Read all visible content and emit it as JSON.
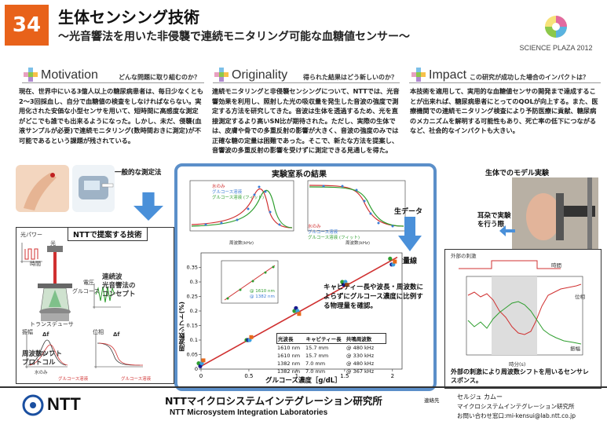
{
  "header": {
    "number": "34",
    "title": "生体センシング技術",
    "subtitle": "〜光音響法を用いた非侵襲で連続モニタリング可能な血糖値センサー〜",
    "event_logo_text": "SCIENCE PLAZA 2012"
  },
  "motivation": {
    "title": "Motivation",
    "question": "どんな問題に取り組むのか？",
    "body": "現在、世界中にいる3億人以上の糖尿病患者は、毎日少なくとも2〜3回採血し、自分で血糖値の検査をしなければならない。実用化された安価な小型センサを用いて、短時間に高感度な測定がどこでも誰でも出来るようになった。しかし、未だ、侵襲(血液サンプルが必要)で連続モニタリング(数時間おきに測定)が不可能であるという課題が残されている。"
  },
  "originality": {
    "title": "Originality",
    "question": "得られた結果はどう新しいのか？",
    "body": "連続モニタリングと非侵襲センシングについて、NTTでは、光音響効果を利用し、照射した光の吸収量を発生した音波の強度で測定する方法を研究してきた。音波は生体を透過するため、光を直接測定するより高いSN比が期待された。ただし、実際の生体では、皮膚や骨での多重反射の影響が大きく、音波の強度のみでは正確な糖の定量は困難であった。そこで、新たな方法を提案し、音響波の多重反射の影響を受けずに測定できる見通しを得た。"
  },
  "impact": {
    "title": "Impact",
    "question": "この研究が成功した場合のインパクトは？",
    "body": "本技術を適用して、実用的な血糖値センサの開発まで達成することが出来れば、糖尿病患者にとってのQOLが向上する。また、医療機関での連続モニタリング検査により予防医療に貢献、糖尿病のメカニズムを解明する可能性もあり、死亡率の低下につながるなど、社会的なインパクトも大きい。"
  },
  "left_panel": {
    "general_method": "一般的な測定法",
    "ntt_tech": "NTTで提案する技術",
    "light_power": "光パワー",
    "light": "光",
    "time": "時間",
    "glucose": "グルコース",
    "transducer": "トランスデューサ",
    "voltage": "電圧",
    "concept": "連続波\n光音響法の\nコンセプト",
    "amplitude": "振幅",
    "phase": "位相",
    "delta_f": "Δf",
    "water": "水のみ",
    "glucose_sol": "グルコース溶液",
    "freq_shift": "周波数シフト\nプロトコル",
    "delta_v": "ΔV↑"
  },
  "center_panel": {
    "title": "実験室系の結果",
    "raw_data": "生データ",
    "line_label": "検量線",
    "cavity_text": "キャビティー長や波長・周波数によらずにグルコース濃度に比例する物理量を確認。",
    "x_label": "グルコース濃度［g/dL］",
    "y_label": "周波数シフト(%)",
    "table_headers": [
      "光波長",
      "キャビティー長",
      "共鳴周波数"
    ],
    "table_rows": [
      [
        "1610 nm",
        "15.7 mm",
        "@ 480 kHz"
      ],
      [
        "1610 nm",
        "15.7 mm",
        "@ 330 kHz"
      ],
      [
        "1382 nm",
        "7.0 mm",
        "@ 480 kHz"
      ],
      [
        "1382 nm",
        "7.0 mm",
        "@ 367 kHz"
      ]
    ],
    "inset_legend": [
      "水のみ",
      "グルコース溶液",
      "グルコース溶液 (フィット)"
    ],
    "inset2_legend": [
      "水のみ",
      "グルコース溶液",
      "グルコース溶液 (フィット)"
    ],
    "inset_xlabel": "周波数(kHz)",
    "small_inset_legend": [
      "@ 1610 nm",
      "@ 1382 nm"
    ]
  },
  "right_panel": {
    "title": "生体でのモデル実験",
    "ear_text": "耳朶で実験\nを行う際",
    "stimulus": "外部の刺激",
    "time": "時間",
    "phase": "位相",
    "amplitude": "振幅",
    "x_label": "時分(s)",
    "caption": "外部の刺激により周波数シフトを用いるセンサレスポンス。"
  },
  "chart_data": [
    {
      "type": "scatter",
      "title": "",
      "xlabel": "グルコース濃度［g/dL］",
      "ylabel": "周波数シフト(%)",
      "xlim": [
        0,
        2.1
      ],
      "ylim": [
        0,
        0.4
      ],
      "x_ticks": [
        0,
        0.5,
        1,
        1.5,
        2
      ],
      "y_ticks": [
        0,
        0.05,
        0.1,
        0.15,
        0.2,
        0.25,
        0.3,
        0.35
      ],
      "series": [
        {
          "name": "1610 nm 15.7 mm @ 480 kHz",
          "color": "#2e9e2e",
          "x": [
            0,
            0.5,
            1,
            1.5,
            2
          ],
          "y": [
            0.02,
            0.1,
            0.2,
            0.3,
            0.38
          ]
        },
        {
          "name": "1610 nm 15.7 mm @ 330 kHz",
          "color": "#1a1a8c",
          "x": [
            0,
            0.5,
            1,
            1.5,
            2
          ],
          "y": [
            0.01,
            0.1,
            0.21,
            0.29,
            0.36
          ]
        },
        {
          "name": "1382 nm 7.0 mm @ 480 kHz",
          "color": "#3aa0e0",
          "x": [
            0,
            0.5,
            1,
            1.5,
            2
          ],
          "y": [
            0.02,
            0.1,
            0.2,
            0.3,
            0.36
          ]
        },
        {
          "name": "1382 nm 7.0 mm @ 367 kHz",
          "color": "#e86a1a",
          "x": [
            0,
            0.5,
            1,
            1.5,
            2
          ],
          "y": [
            0.03,
            0.11,
            0.19,
            0.29,
            0.37
          ]
        }
      ]
    }
  ],
  "footer": {
    "logo": "NTT",
    "lab_jp": "NTTマイクロシステムインテグレーション研究所",
    "lab_en": "NTT Microsystem Integration Laboratories",
    "presenter_label": "連絡先",
    "presenter": "セルジュ カムー",
    "presenter_org": "マイクロシステムインテグレーション研究所",
    "contact": "お問い合わせ窓口:mi-kensui@lab.ntt.co.jp"
  },
  "colors": {
    "accent": "#e8621a",
    "panel_blue": "#5b8fc9",
    "arrow_blue": "#4a90d9"
  }
}
